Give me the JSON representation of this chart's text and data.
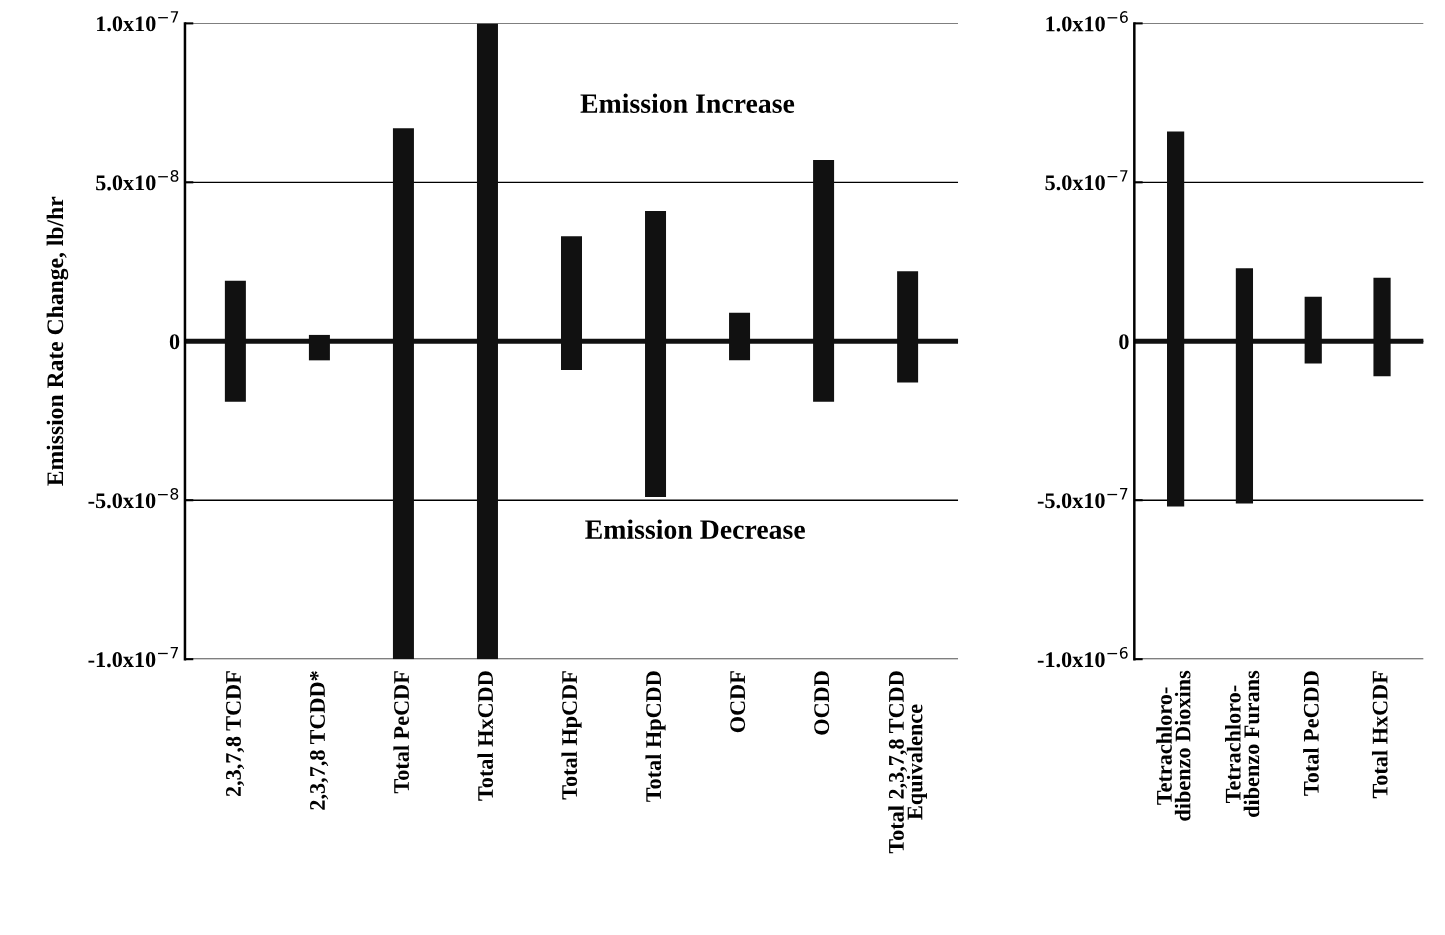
{
  "chart_data": [
    {
      "type": "bar",
      "ylabel": "Emission Rate Change, lb/hr",
      "categories": [
        "2,3,7,8 TCDF",
        "2,3,7,8 TCDD*",
        "Total PeCDF",
        "Total HxCDD",
        "Total HpCDF",
        "Total HpCDD",
        "OCDF",
        "OCDD",
        "Total 2,3,7,8 TCDD\nEquivalence"
      ],
      "base": [
        -1.9e-08,
        -6e-09,
        -1e-07,
        -1e-07,
        -9e-09,
        -4.9e-08,
        -6e-09,
        -1.9e-08,
        -1.3e-08
      ],
      "values": [
        3.8e-08,
        8e-09,
        1.67e-07,
        2e-07,
        4.2e-08,
        9e-08,
        1.5e-08,
        7.6e-08,
        3.5e-08
      ],
      "color": "#111111",
      "ylim": [
        -1e-07,
        1e-07
      ],
      "yticks": [
        {
          "value": -1e-07,
          "label": "-1.0x10$^{−7}$"
        },
        {
          "value": -5e-08,
          "label": "-5.0x10$^{−8}$"
        },
        0,
        {
          "value": 5e-08,
          "label": "5.0x10$^{−8}$"
        },
        {
          "value": 1e-07,
          "label": "1.0x10$^{−7}$"
        }
      ],
      "grid": "y",
      "ref_lines": [
        {
          "axis": "y",
          "value": 0,
          "color": "#111111"
        }
      ],
      "annotations": [
        "Emission Increase",
        "Emission Decrease"
      ]
    },
    {
      "type": "bar",
      "categories": [
        "Tetrachloro-\ndibenzo Dioxins",
        "Tetrachloro-\ndibenzo Furans",
        "Total PeCDD",
        "Total HxCDF"
      ],
      "base": [
        -5.2e-07,
        -5.1e-07,
        -7e-08,
        -1.1e-07
      ],
      "values": [
        1.18e-06,
        7.4e-07,
        2.1e-07,
        3.1e-07
      ],
      "color": "#111111",
      "ylim": [
        -1e-06,
        1e-06
      ],
      "yticks": [
        {
          "value": -1e-06,
          "label": "-1.0x10$^{−6}$"
        },
        {
          "value": -5e-07,
          "label": "-5.0x10$^{−7}$"
        },
        0,
        {
          "value": 5e-07,
          "label": "5.0x10$^{−7}$"
        },
        {
          "value": 1e-06,
          "label": "1.0x10$^{−6}$"
        }
      ],
      "grid": "y",
      "ref_lines": [
        {
          "axis": "y",
          "value": 0,
          "color": "#111111"
        }
      ]
    }
  ]
}
